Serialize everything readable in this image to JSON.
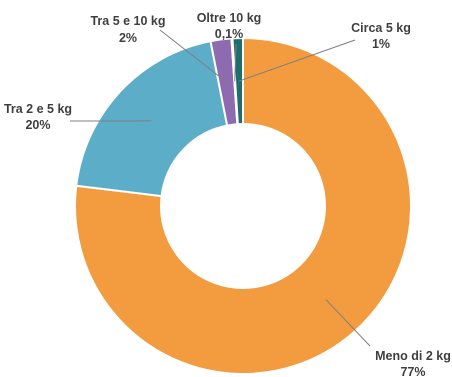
{
  "chart_data": {
    "type": "pie",
    "title": "",
    "categories": [
      "Meno di 2 kg",
      "Tra 2 e 5 kg",
      "Tra 5 e 10 kg",
      "Oltre 10 kg",
      "Circa 5 kg"
    ],
    "values": [
      77,
      20,
      2,
      0.1,
      1
    ],
    "value_labels": [
      "77%",
      "20%",
      "2%",
      "0,1%",
      "1%"
    ],
    "colors": [
      "#F29B3F",
      "#5BADC8",
      "#8E6BB0",
      "#1F3F60",
      "#1E6E6E"
    ],
    "donut": true,
    "legend": "none"
  }
}
